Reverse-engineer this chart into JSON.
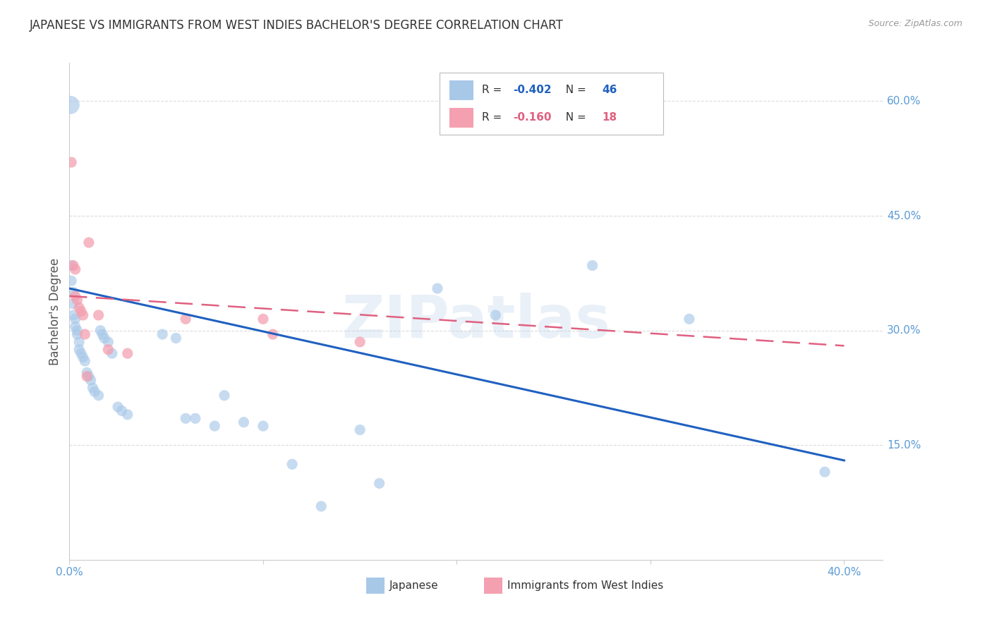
{
  "title": "JAPANESE VS IMMIGRANTS FROM WEST INDIES BACHELOR'S DEGREE CORRELATION CHART",
  "source": "Source: ZipAtlas.com",
  "ylabel": "Bachelor's Degree",
  "right_yticks": [
    "60.0%",
    "45.0%",
    "30.0%",
    "15.0%"
  ],
  "right_ytick_vals": [
    0.6,
    0.45,
    0.3,
    0.15
  ],
  "xlim": [
    0.0,
    0.42
  ],
  "ylim": [
    0.0,
    0.65
  ],
  "watermark": "ZIPatlas",
  "legend_blue_R": "-0.402",
  "legend_blue_N": "46",
  "legend_pink_R": "-0.160",
  "legend_pink_N": "18",
  "blue_color": "#A8C8E8",
  "pink_color": "#F4A0B0",
  "line_blue": "#2060C0",
  "line_pink": "#E06080",
  "title_color": "#333333",
  "axis_label_color": "#5B9BD5",
  "japanese_points": [
    [
      0.0005,
      0.595
    ],
    [
      0.001,
      0.385
    ],
    [
      0.001,
      0.365
    ],
    [
      0.002,
      0.35
    ],
    [
      0.002,
      0.335
    ],
    [
      0.002,
      0.32
    ],
    [
      0.003,
      0.315
    ],
    [
      0.003,
      0.305
    ],
    [
      0.004,
      0.3
    ],
    [
      0.004,
      0.295
    ],
    [
      0.005,
      0.285
    ],
    [
      0.005,
      0.275
    ],
    [
      0.006,
      0.27
    ],
    [
      0.007,
      0.265
    ],
    [
      0.008,
      0.26
    ],
    [
      0.009,
      0.245
    ],
    [
      0.01,
      0.24
    ],
    [
      0.011,
      0.235
    ],
    [
      0.012,
      0.225
    ],
    [
      0.013,
      0.22
    ],
    [
      0.015,
      0.215
    ],
    [
      0.016,
      0.3
    ],
    [
      0.017,
      0.295
    ],
    [
      0.018,
      0.29
    ],
    [
      0.02,
      0.285
    ],
    [
      0.022,
      0.27
    ],
    [
      0.025,
      0.2
    ],
    [
      0.027,
      0.195
    ],
    [
      0.03,
      0.19
    ],
    [
      0.048,
      0.295
    ],
    [
      0.055,
      0.29
    ],
    [
      0.06,
      0.185
    ],
    [
      0.065,
      0.185
    ],
    [
      0.075,
      0.175
    ],
    [
      0.08,
      0.215
    ],
    [
      0.09,
      0.18
    ],
    [
      0.1,
      0.175
    ],
    [
      0.115,
      0.125
    ],
    [
      0.13,
      0.07
    ],
    [
      0.15,
      0.17
    ],
    [
      0.16,
      0.1
    ],
    [
      0.19,
      0.355
    ],
    [
      0.22,
      0.32
    ],
    [
      0.27,
      0.385
    ],
    [
      0.32,
      0.315
    ],
    [
      0.39,
      0.115
    ]
  ],
  "west_indies_points": [
    [
      0.001,
      0.52
    ],
    [
      0.002,
      0.385
    ],
    [
      0.003,
      0.38
    ],
    [
      0.003,
      0.345
    ],
    [
      0.004,
      0.34
    ],
    [
      0.005,
      0.33
    ],
    [
      0.006,
      0.325
    ],
    [
      0.007,
      0.32
    ],
    [
      0.008,
      0.295
    ],
    [
      0.009,
      0.24
    ],
    [
      0.01,
      0.415
    ],
    [
      0.015,
      0.32
    ],
    [
      0.02,
      0.275
    ],
    [
      0.03,
      0.27
    ],
    [
      0.06,
      0.315
    ],
    [
      0.1,
      0.315
    ],
    [
      0.105,
      0.295
    ],
    [
      0.15,
      0.285
    ]
  ],
  "blue_line_x": [
    0.0,
    0.4
  ],
  "blue_line_y": [
    0.355,
    0.13
  ],
  "pink_line_x": [
    0.0,
    0.4
  ],
  "pink_line_y": [
    0.345,
    0.28
  ],
  "grid_color": "#CCCCCC",
  "background_color": "#FFFFFF",
  "bubble_size_small": 120,
  "bubble_size_large": 350
}
